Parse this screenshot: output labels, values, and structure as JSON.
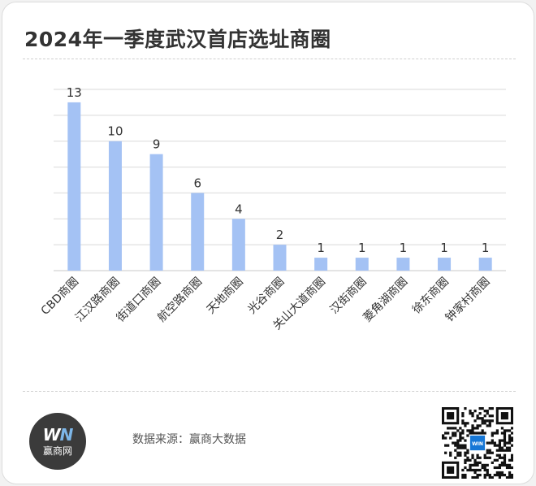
{
  "title": "2024年一季度武汉首店选址商圈",
  "source": "数据来源：赢商大数据",
  "logo": {
    "mark_left": "W",
    "mark_right": "N",
    "text": "赢商网",
    "icon": "winshang-logo-icon"
  },
  "qr": {
    "icon": "qr-code-icon",
    "badge_text": "WIN"
  },
  "colors": {
    "bar": "#a4c2f4",
    "grid": "#d9d9d9",
    "text": "#333333",
    "logo_bg": "#3b3b3b"
  },
  "chart_data": {
    "type": "bar",
    "title": "2024年一季度武汉首店选址商圈",
    "categories": [
      "CBD商圈",
      "江汉路商圈",
      "街道口商圈",
      "航空路商圈",
      "天地商圈",
      "光谷商圈",
      "关山大道商圈",
      "汉街商圈",
      "菱角湖商圈",
      "徐东商圈",
      "钟家村商圈"
    ],
    "values": [
      13,
      10,
      9,
      6,
      4,
      2,
      1,
      1,
      1,
      1,
      1
    ],
    "ylim": [
      0,
      14
    ],
    "grid": true,
    "data_labels": true,
    "xlabel": "",
    "ylabel": ""
  }
}
